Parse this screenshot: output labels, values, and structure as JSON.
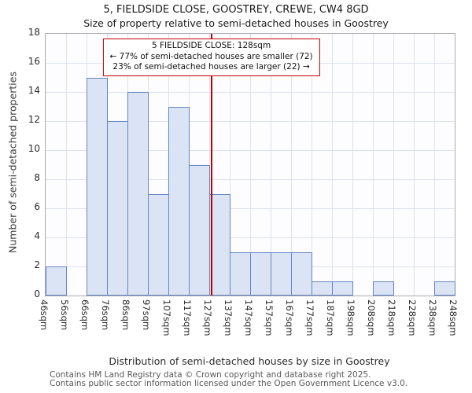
{
  "header": {
    "title": "5, FIELDSIDE CLOSE, GOOSTREY, CREWE, CW4 8GD",
    "subtitle": "Size of property relative to semi-detached houses in Goostrey"
  },
  "chart_data": {
    "type": "bar",
    "title": "5, FIELDSIDE CLOSE, GOOSTREY, CREWE, CW4 8GD",
    "subtitle": "Size of property relative to semi-detached houses in Goostrey",
    "xlabel": "Distribution of semi-detached houses by size in Goostrey",
    "ylabel": "Number of semi-detached properties",
    "ylim": [
      0,
      18
    ],
    "ytick_step": 2,
    "grid": true,
    "bar_fill": "#dbe4f4",
    "bar_border": "#6585c4",
    "bin_edges": [
      46,
      56,
      66,
      76,
      86,
      97,
      107,
      117,
      127,
      137,
      147,
      157,
      167,
      177,
      187,
      198,
      208,
      218,
      228,
      238,
      248
    ],
    "tick_labels": [
      "46sqm",
      "56sqm",
      "66sqm",
      "76sqm",
      "86sqm",
      "97sqm",
      "107sqm",
      "117sqm",
      "127sqm",
      "137sqm",
      "147sqm",
      "157sqm",
      "167sqm",
      "177sqm",
      "187sqm",
      "198sqm",
      "208sqm",
      "218sqm",
      "228sqm",
      "238sqm",
      "248sqm"
    ],
    "values": [
      2,
      0,
      15,
      12,
      14,
      7,
      13,
      9,
      7,
      3,
      3,
      3,
      3,
      1,
      1,
      0,
      1,
      0,
      0,
      1
    ],
    "marker": {
      "value": 128,
      "color": "#c00000",
      "label": "5 FIELDSIDE CLOSE: 128sqm",
      "smaller_line": "← 77% of semi-detached houses are smaller (72)",
      "larger_line": "23% of semi-detached houses are larger (22) →"
    }
  },
  "footer": {
    "line1": "Contains HM Land Registry data © Crown copyright and database right 2025.",
    "line2": "Contains public sector information licensed under the Open Government Licence v3.0."
  }
}
